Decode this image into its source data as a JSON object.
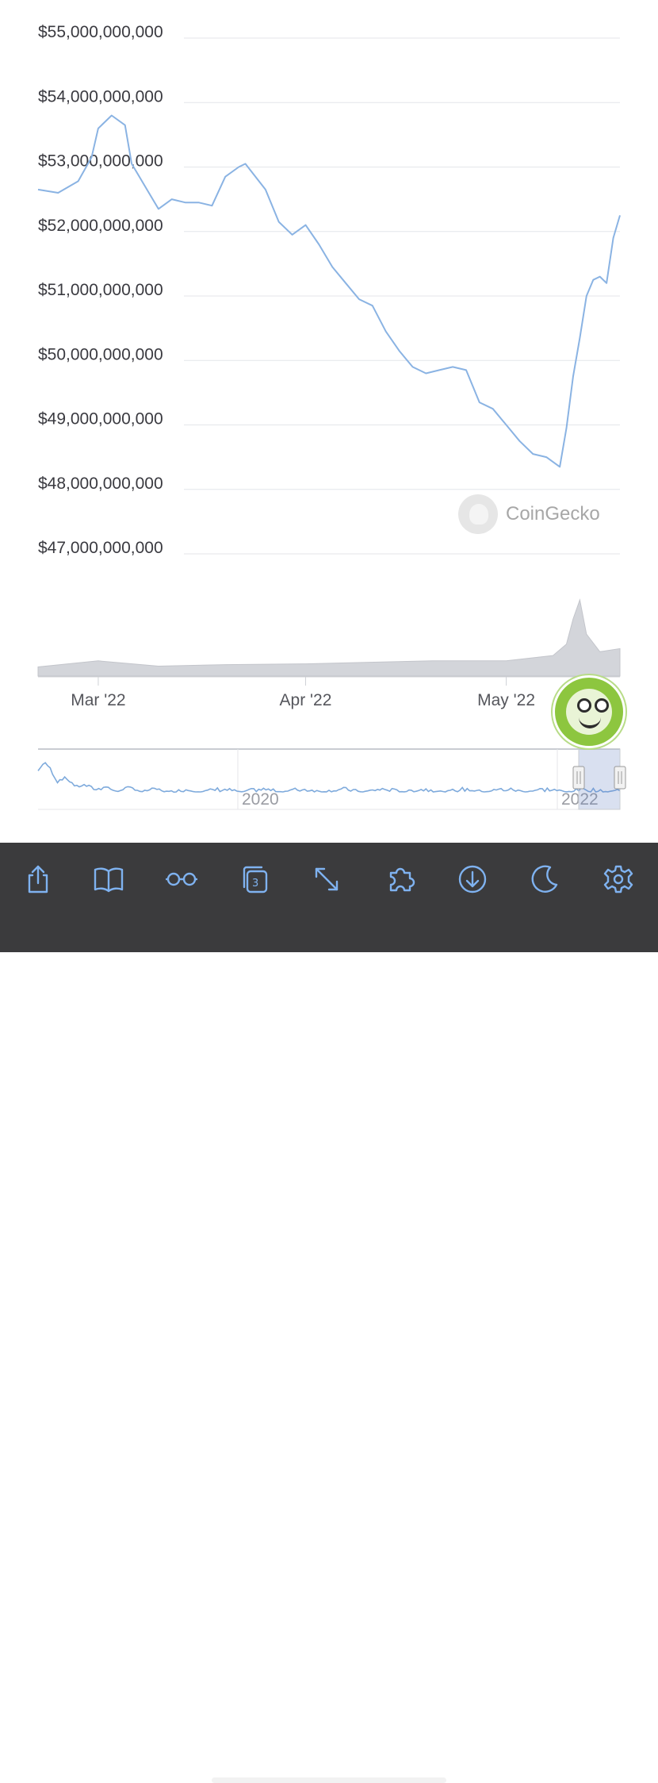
{
  "chart_data": [
    {
      "type": "line",
      "ylim": [
        47000000000,
        55000000000
      ],
      "y_ticks": [
        "$55,000,000,000",
        "$54,000,000,000",
        "$53,000,000,000",
        "$52,000,000,000",
        "$51,000,000,000",
        "$50,000,000,000",
        "$49,000,000,000",
        "$48,000,000,000",
        "$47,000,000,000"
      ],
      "y_tick_values": [
        55000000000,
        54000000000,
        53000000000,
        52000000000,
        51000000000,
        50000000000,
        49000000000,
        48000000000,
        47000000000
      ],
      "x_ticks": [
        "Mar '22",
        "Apr '22",
        "May '22"
      ],
      "x_tick_dates": [
        "2022-03-01",
        "2022-04-01",
        "2022-05-01"
      ],
      "x_range": [
        "2022-02-20",
        "2022-05-18"
      ],
      "grid": true,
      "series": [
        {
          "color": "#8ab3e3",
          "x": [
            "2022-02-20",
            "2022-02-23",
            "2022-02-26",
            "2022-02-28",
            "2022-03-01",
            "2022-03-03",
            "2022-03-05",
            "2022-03-06",
            "2022-03-08",
            "2022-03-10",
            "2022-03-12",
            "2022-03-14",
            "2022-03-16",
            "2022-03-18",
            "2022-03-20",
            "2022-03-22",
            "2022-03-23",
            "2022-03-26",
            "2022-03-28",
            "2022-03-30",
            "2022-04-01",
            "2022-04-03",
            "2022-04-05",
            "2022-04-07",
            "2022-04-09",
            "2022-04-11",
            "2022-04-13",
            "2022-04-15",
            "2022-04-17",
            "2022-04-19",
            "2022-04-21",
            "2022-04-23",
            "2022-04-25",
            "2022-04-27",
            "2022-04-29",
            "2022-05-01",
            "2022-05-03",
            "2022-05-05",
            "2022-05-07",
            "2022-05-09",
            "2022-05-10",
            "2022-05-11",
            "2022-05-12",
            "2022-05-13",
            "2022-05-14",
            "2022-05-15",
            "2022-05-16",
            "2022-05-17",
            "2022-05-18"
          ],
          "y": [
            52650000000,
            52600000000,
            52780000000,
            53150000000,
            53600000000,
            53800000000,
            53650000000,
            53050000000,
            52700000000,
            52350000000,
            52500000000,
            52450000000,
            52450000000,
            52400000000,
            52850000000,
            53000000000,
            53050000000,
            52650000000,
            52150000000,
            51950000000,
            52100000000,
            51800000000,
            51450000000,
            51200000000,
            50950000000,
            50850000000,
            50450000000,
            50150000000,
            49900000000,
            49800000000,
            49850000000,
            49900000000,
            49850000000,
            49350000000,
            49250000000,
            49000000000,
            48750000000,
            48550000000,
            48500000000,
            48350000000,
            48950000000,
            49750000000,
            50350000000,
            51000000000,
            51250000000,
            51300000000,
            51200000000,
            51900000000,
            52250000000
          ]
        }
      ]
    },
    {
      "type": "area",
      "label": "volume",
      "x": [
        "2022-02-20",
        "2022-03-01",
        "2022-03-10",
        "2022-03-20",
        "2022-04-01",
        "2022-04-10",
        "2022-04-20",
        "2022-05-01",
        "2022-05-08",
        "2022-05-10",
        "2022-05-11",
        "2022-05-12",
        "2022-05-13",
        "2022-05-15",
        "2022-05-18"
      ],
      "values": [
        0.12,
        0.2,
        0.13,
        0.15,
        0.16,
        0.18,
        0.2,
        0.2,
        0.27,
        0.42,
        0.75,
        1.0,
        0.55,
        0.32,
        0.36
      ]
    },
    {
      "type": "line",
      "label": "navigator",
      "x_ticks": [
        "2020",
        "2022"
      ],
      "selected_range": [
        "2022-02-20",
        "2022-05-18"
      ],
      "color": "#7eaadc"
    }
  ],
  "watermark": {
    "text": "CoinGecko"
  },
  "toolbar": {
    "icons": [
      "share-icon",
      "book-icon",
      "glasses-icon",
      "tabs-icon",
      "expand-icon",
      "extension-icon",
      "download-icon",
      "moon-icon",
      "gear-icon"
    ],
    "tab_count": "3"
  }
}
